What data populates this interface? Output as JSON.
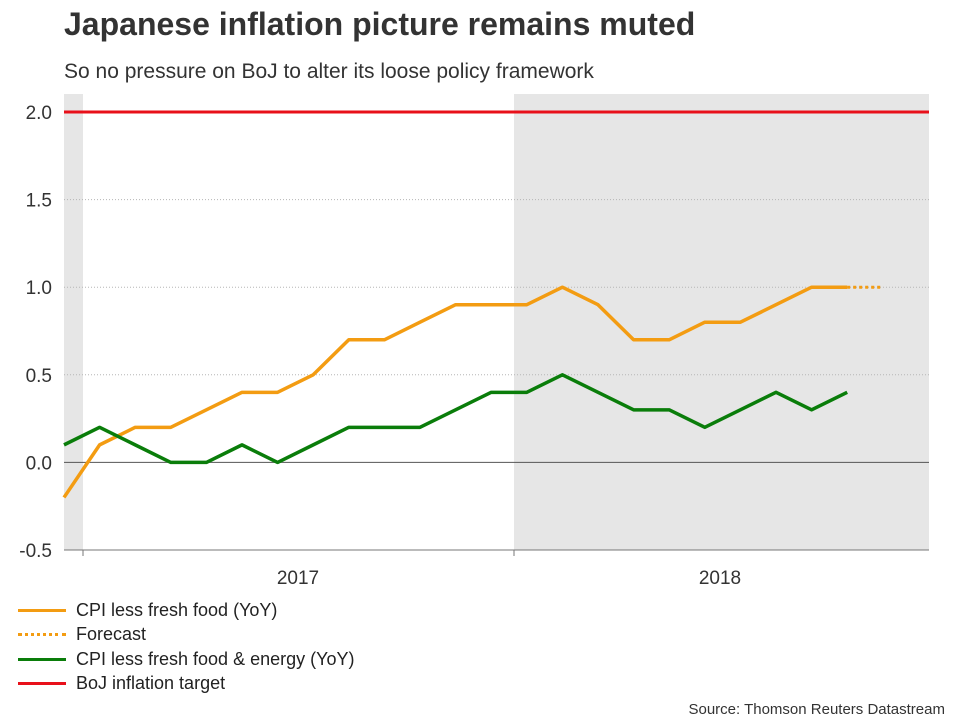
{
  "header": {
    "title": "Japanese inflation picture remains muted",
    "subtitle": "So no pressure on BoJ to alter its loose policy framework"
  },
  "source": "Source: Thomson Reuters Datastream",
  "legend": [
    {
      "label": "CPI less fresh food (YoY)",
      "color": "#f39c12",
      "style": "solid"
    },
    {
      "label": "Forecast",
      "color": "#f39c12",
      "style": "dotted"
    },
    {
      "label": "CPI less fresh food & energy (YoY)",
      "color": "#0a7d0a",
      "style": "solid"
    },
    {
      "label": "BoJ inflation target",
      "color": "#e8101a",
      "style": "solid"
    }
  ],
  "chart_data": {
    "type": "line",
    "title": "Japanese inflation picture remains muted",
    "xlabel": "",
    "ylabel": "",
    "ylim": [
      -0.5,
      2.0
    ],
    "yticks": [
      -0.5,
      0.0,
      0.5,
      1.0,
      1.5,
      2.0
    ],
    "ytick_labels": [
      "-0.5",
      "0.0",
      "0.5",
      "1.0",
      "1.5",
      "2.0"
    ],
    "x_period": "monthly, Dec 2016 to Dec 2018",
    "x_axis_labels": [
      "2017",
      "2018"
    ],
    "shaded_periods": [
      "Dec 2016",
      "2018"
    ],
    "series": [
      {
        "name": "CPI less fresh food (YoY)",
        "color": "#f39c12",
        "style": "solid",
        "values": [
          -0.2,
          0.1,
          0.2,
          0.2,
          0.3,
          0.4,
          0.4,
          0.5,
          0.7,
          0.7,
          0.8,
          0.9,
          0.9,
          0.9,
          1.0,
          0.9,
          0.7,
          0.7,
          0.8,
          0.8,
          0.9,
          1.0,
          1.0
        ]
      },
      {
        "name": "Forecast",
        "color": "#f39c12",
        "style": "dotted",
        "values": [
          null,
          null,
          null,
          null,
          null,
          null,
          null,
          null,
          null,
          null,
          null,
          null,
          null,
          null,
          null,
          null,
          null,
          null,
          null,
          null,
          null,
          null,
          1.0,
          1.0
        ]
      },
      {
        "name": "CPI less fresh food & energy (YoY)",
        "color": "#0a7d0a",
        "style": "solid",
        "values": [
          0.1,
          0.2,
          0.1,
          0.0,
          0.0,
          0.1,
          0.0,
          0.1,
          0.2,
          0.2,
          0.2,
          0.3,
          0.4,
          0.4,
          0.5,
          0.4,
          0.3,
          0.3,
          0.2,
          0.3,
          0.4,
          0.3,
          0.4
        ]
      },
      {
        "name": "BoJ inflation target",
        "color": "#e8101a",
        "style": "solid",
        "constant": 2.0
      }
    ]
  }
}
